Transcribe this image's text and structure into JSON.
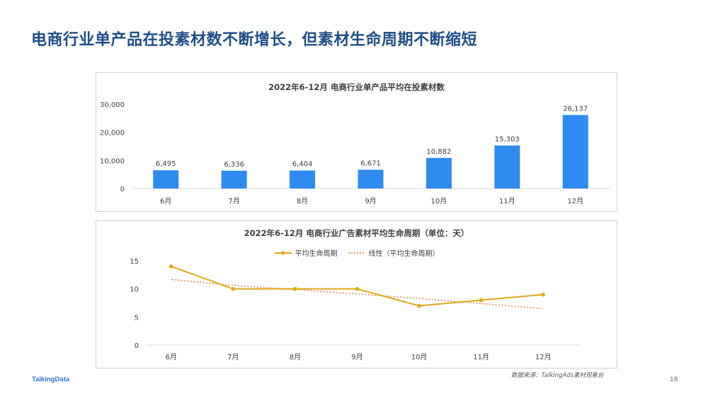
{
  "headline": "电商行业单产品在投素材数不断增长，但素材生命周期不断缩短",
  "chart_data": [
    {
      "type": "bar",
      "title": "2022年6-12月 电商行业单产品平均在投素材数",
      "categories": [
        "6月",
        "7月",
        "8月",
        "9月",
        "10月",
        "11月",
        "12月"
      ],
      "values": [
        6495,
        6336,
        6404,
        6671,
        10882,
        15303,
        26137
      ],
      "value_labels": [
        "6,495",
        "6,336",
        "6,404",
        "6,671",
        "10,882",
        "15,303",
        "26,137"
      ],
      "ylim": [
        0,
        30000
      ],
      "yticks": [
        0,
        10000,
        20000,
        30000
      ],
      "ytick_labels": [
        "0",
        "10,000",
        "20,000",
        "30,000"
      ],
      "grid": false,
      "colors": {
        "bar": "#2e8bf0"
      }
    },
    {
      "type": "line",
      "title": "2022年6-12月 电商行业广告素材平均生命周期（单位：天）",
      "categories": [
        "6月",
        "7月",
        "8月",
        "9月",
        "10月",
        "11月",
        "12月"
      ],
      "series": [
        {
          "name": "平均生命周期",
          "values": [
            14,
            10,
            10,
            10,
            7,
            8,
            9
          ],
          "color": "#e0a81c",
          "style": "solid-marker"
        },
        {
          "name": "线性（平均生命周期）",
          "values": [
            11.7,
            10.6,
            9.9,
            9.1,
            8.3,
            7.4,
            6.5
          ],
          "color": "#f0955b",
          "style": "dotted"
        }
      ],
      "ylim": [
        0,
        15
      ],
      "yticks": [
        0,
        5,
        10,
        15
      ],
      "ytick_labels": [
        "0",
        "5",
        "10",
        "15"
      ],
      "legend_position": "top",
      "grid": false
    }
  ],
  "footer": {
    "source": "数据来源：TalkingAds素材观象台",
    "logo": "TalkingData",
    "page_number": "18"
  }
}
